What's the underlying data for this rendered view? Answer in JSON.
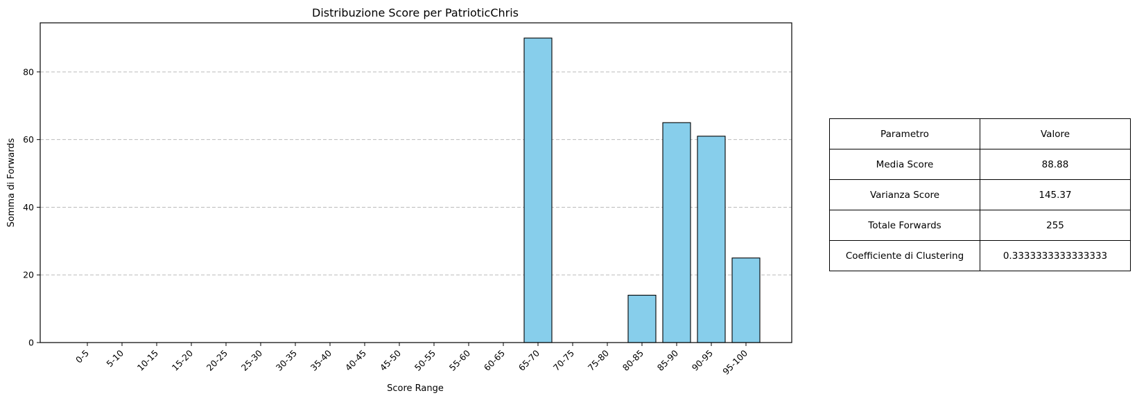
{
  "chart_data": {
    "type": "bar",
    "title": "Distribuzione Score per PatrioticChris",
    "xlabel": "Score Range",
    "ylabel": "Somma di Forwards",
    "categories": [
      "0-5",
      "5-10",
      "10-15",
      "15-20",
      "20-25",
      "25-30",
      "30-35",
      "35-40",
      "40-45",
      "45-50",
      "50-55",
      "55-60",
      "60-65",
      "65-70",
      "70-75",
      "75-80",
      "80-85",
      "85-90",
      "90-95",
      "95-100"
    ],
    "values": [
      0,
      0,
      0,
      0,
      0,
      0,
      0,
      0,
      0,
      0,
      0,
      0,
      0,
      90,
      0,
      0,
      14,
      65,
      61,
      25
    ],
    "yticks": [
      0,
      20,
      40,
      60,
      80
    ],
    "ylim": [
      0,
      94.5
    ],
    "grid": "y-dashed",
    "bar_color": "#87ceeb",
    "bar_edge_color": "#000000"
  },
  "table": {
    "headers": [
      "Parametro",
      "Valore"
    ],
    "rows": [
      [
        "Media Score",
        "88.88"
      ],
      [
        "Varianza Score",
        "145.37"
      ],
      [
        "Totale Forwards",
        "255"
      ],
      [
        "Coefficiente di Clustering",
        "0.3333333333333333"
      ]
    ]
  }
}
